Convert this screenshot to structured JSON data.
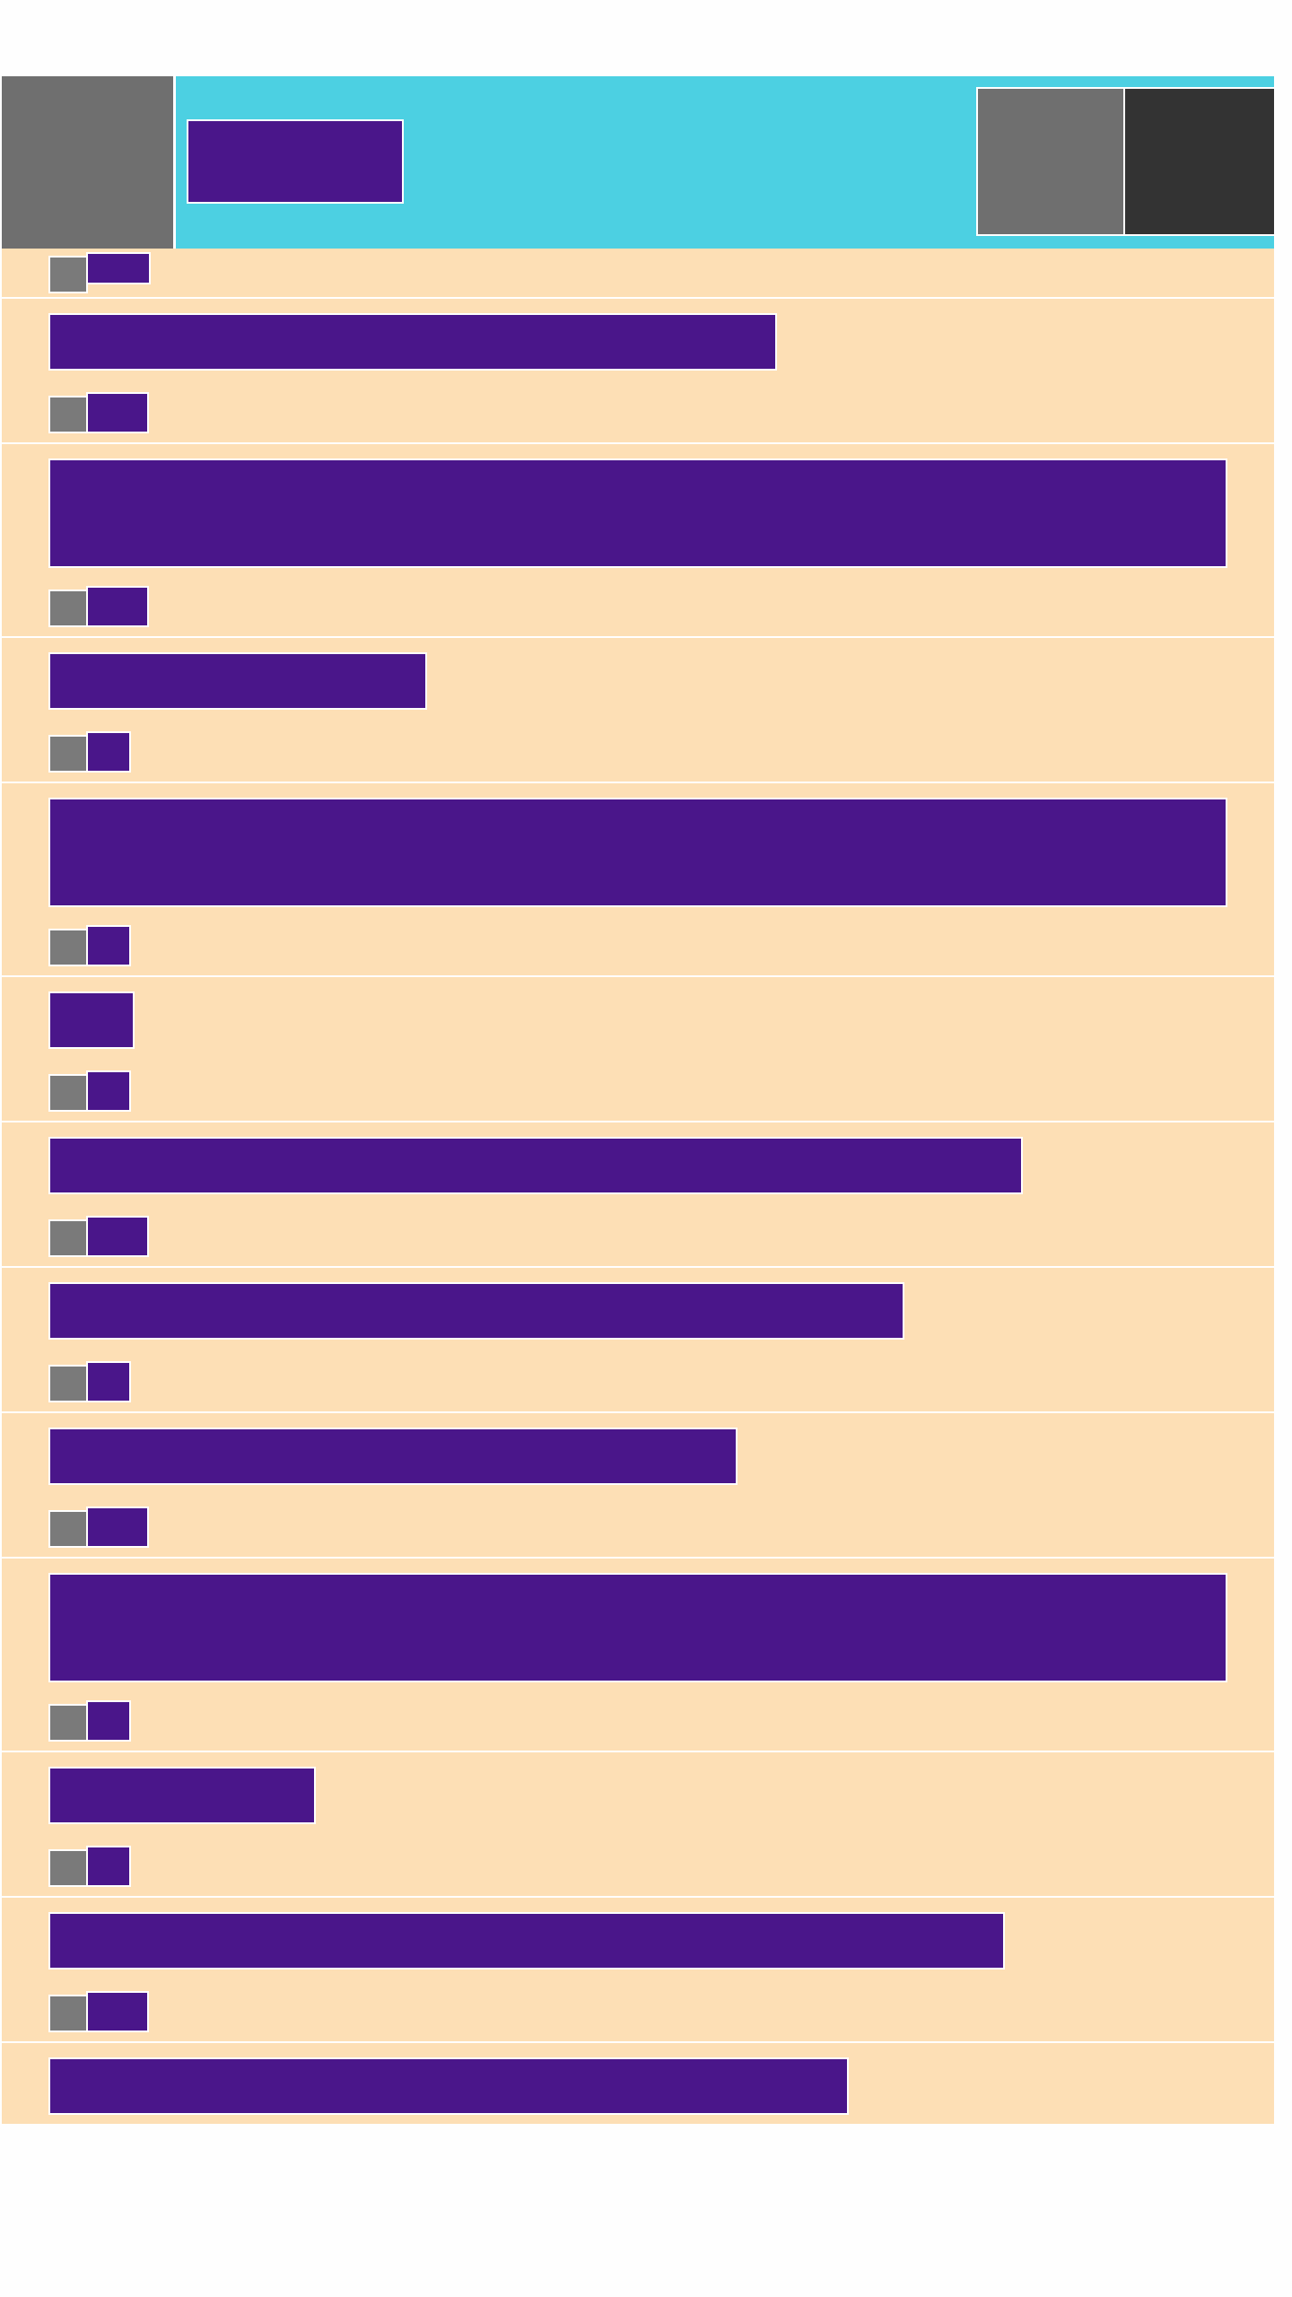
{
  "header": {
    "logo": "",
    "title": "",
    "action_primary": "",
    "action_secondary": ""
  },
  "items": [
    {
      "title": "",
      "meta": ""
    },
    {
      "title": "",
      "meta": ""
    },
    {
      "title": "",
      "meta": ""
    },
    {
      "title": "",
      "meta": ""
    },
    {
      "title": "",
      "meta": ""
    },
    {
      "title": "",
      "meta": ""
    },
    {
      "title": "",
      "meta": ""
    },
    {
      "title": "",
      "meta": ""
    },
    {
      "title": "",
      "meta": ""
    },
    {
      "title": "",
      "meta": ""
    },
    {
      "title": "",
      "meta": ""
    },
    {
      "title": "",
      "meta": ""
    }
  ],
  "colors": {
    "header_bg": "#4cd0e2",
    "list_bg": "#fddfb5",
    "block_fill": "#4a168a",
    "placeholder_gray": "#6f6f6f",
    "placeholder_dark": "#333333"
  },
  "icons": {
    "logo": "logo-icon",
    "item_meta": "avatar-icon"
  }
}
